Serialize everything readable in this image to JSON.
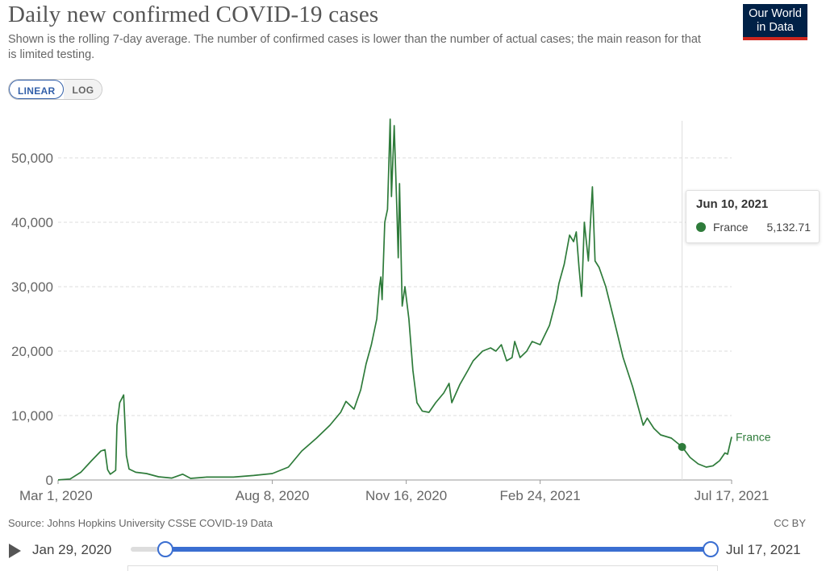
{
  "header": {
    "title": "Daily new confirmed COVID-19 cases",
    "subtitle": "Shown is the rolling 7-day average. The number of confirmed cases is lower than the number of actual cases; the main reason for that is limited testing.",
    "logo_line1": "Our World",
    "logo_line2": "in Data"
  },
  "scale_toggle": {
    "linear": "LINEAR",
    "log": "LOG",
    "selected": "LINEAR"
  },
  "tooltip": {
    "date": "Jun 10, 2021",
    "series": "France",
    "value": "5,132.71",
    "color": "#2e7b3a"
  },
  "footer": {
    "source": "Source: Johns Hopkins University CSSE COVID-19 Data",
    "license": "CC BY"
  },
  "timeline": {
    "start_label": "Jan 29, 2020",
    "end_label": "Jul 17, 2021"
  },
  "colors": {
    "series": "#2e7b3a",
    "accent": "#3a6ed1",
    "grid": "#dddddd",
    "logo_bg": "#002147",
    "logo_bar": "#ce261e"
  },
  "chart_data": {
    "type": "line",
    "title": "Daily new confirmed COVID-19 cases",
    "xlabel": "",
    "ylabel": "",
    "x_range": [
      "2020-03-01",
      "2021-07-17"
    ],
    "ylim": [
      0,
      56000
    ],
    "y_ticks": [
      0,
      10000,
      20000,
      30000,
      40000,
      50000
    ],
    "y_tick_labels": [
      "0",
      "10,000",
      "20,000",
      "30,000",
      "40,000",
      "50,000"
    ],
    "x_ticks": [
      "2020-03-01",
      "2020-08-08",
      "2020-11-16",
      "2021-02-24",
      "2021-07-17"
    ],
    "x_tick_labels": [
      "Mar 1, 2020",
      "Aug 8, 2020",
      "Nov 16, 2020",
      "Feb 24, 2021",
      "Jul 17, 2021"
    ],
    "grid": "horizontal dashed",
    "highlight": {
      "date": "2021-06-10",
      "value": 5132.71
    },
    "series": [
      {
        "name": "France",
        "points": [
          [
            "2020-03-01",
            10
          ],
          [
            "2020-03-10",
            150
          ],
          [
            "2020-03-18",
            1200
          ],
          [
            "2020-03-26",
            3000
          ],
          [
            "2020-04-02",
            4500
          ],
          [
            "2020-04-05",
            4700
          ],
          [
            "2020-04-07",
            1600
          ],
          [
            "2020-04-09",
            900
          ],
          [
            "2020-04-11",
            1200
          ],
          [
            "2020-04-13",
            1500
          ],
          [
            "2020-04-14",
            8500
          ],
          [
            "2020-04-16",
            12000
          ],
          [
            "2020-04-19",
            13200
          ],
          [
            "2020-04-21",
            3800
          ],
          [
            "2020-04-23",
            1700
          ],
          [
            "2020-04-28",
            1200
          ],
          [
            "2020-05-06",
            1000
          ],
          [
            "2020-05-15",
            500
          ],
          [
            "2020-05-25",
            300
          ],
          [
            "2020-06-02",
            900
          ],
          [
            "2020-06-08",
            250
          ],
          [
            "2020-06-20",
            450
          ],
          [
            "2020-07-10",
            450
          ],
          [
            "2020-07-25",
            700
          ],
          [
            "2020-08-08",
            1000
          ],
          [
            "2020-08-20",
            2000
          ],
          [
            "2020-08-30",
            4500
          ],
          [
            "2020-09-10",
            6500
          ],
          [
            "2020-09-20",
            8500
          ],
          [
            "2020-09-28",
            10500
          ],
          [
            "2020-10-02",
            12200
          ],
          [
            "2020-10-08",
            11000
          ],
          [
            "2020-10-13",
            14000
          ],
          [
            "2020-10-17",
            18000
          ],
          [
            "2020-10-21",
            21000
          ],
          [
            "2020-10-25",
            25000
          ],
          [
            "2020-10-27",
            30000
          ],
          [
            "2020-10-28",
            31500
          ],
          [
            "2020-10-29",
            28000
          ],
          [
            "2020-10-31",
            40000
          ],
          [
            "2020-11-02",
            42000
          ],
          [
            "2020-11-04",
            56000
          ],
          [
            "2020-11-05",
            44000
          ],
          [
            "2020-11-07",
            55000
          ],
          [
            "2020-11-09",
            42000
          ],
          [
            "2020-11-10",
            34500
          ],
          [
            "2020-11-11",
            46000
          ],
          [
            "2020-11-13",
            27000
          ],
          [
            "2020-11-15",
            30000
          ],
          [
            "2020-11-18",
            25000
          ],
          [
            "2020-11-21",
            17000
          ],
          [
            "2020-11-24",
            12000
          ],
          [
            "2020-11-28",
            10700
          ],
          [
            "2020-12-03",
            10500
          ],
          [
            "2020-12-08",
            12000
          ],
          [
            "2020-12-14",
            13500
          ],
          [
            "2020-12-18",
            15000
          ],
          [
            "2020-12-20",
            12000
          ],
          [
            "2020-12-26",
            14800
          ],
          [
            "2021-01-01",
            17000
          ],
          [
            "2021-01-05",
            18500
          ],
          [
            "2021-01-12",
            20000
          ],
          [
            "2021-01-18",
            20500
          ],
          [
            "2021-01-22",
            20000
          ],
          [
            "2021-01-26",
            21000
          ],
          [
            "2021-01-30",
            18500
          ],
          [
            "2021-02-03",
            19000
          ],
          [
            "2021-02-05",
            21500
          ],
          [
            "2021-02-09",
            19000
          ],
          [
            "2021-02-14",
            20000
          ],
          [
            "2021-02-18",
            21500
          ],
          [
            "2021-02-24",
            21000
          ],
          [
            "2021-03-03",
            24000
          ],
          [
            "2021-03-08",
            28000
          ],
          [
            "2021-03-10",
            30500
          ],
          [
            "2021-03-14",
            33500
          ],
          [
            "2021-03-18",
            38000
          ],
          [
            "2021-03-21",
            37000
          ],
          [
            "2021-03-23",
            38500
          ],
          [
            "2021-03-25",
            33000
          ],
          [
            "2021-03-27",
            28500
          ],
          [
            "2021-03-29",
            40000
          ],
          [
            "2021-04-01",
            34000
          ],
          [
            "2021-04-04",
            45500
          ],
          [
            "2021-04-06",
            34000
          ],
          [
            "2021-04-09",
            33000
          ],
          [
            "2021-04-14",
            30000
          ],
          [
            "2021-04-20",
            25000
          ],
          [
            "2021-04-27",
            19000
          ],
          [
            "2021-05-04",
            14500
          ],
          [
            "2021-05-08",
            11500
          ],
          [
            "2021-05-12",
            8500
          ],
          [
            "2021-05-15",
            9600
          ],
          [
            "2021-05-20",
            8000
          ],
          [
            "2021-05-25",
            7000
          ],
          [
            "2021-06-02",
            6500
          ],
          [
            "2021-06-10",
            5132.71
          ],
          [
            "2021-06-16",
            3500
          ],
          [
            "2021-06-22",
            2500
          ],
          [
            "2021-06-28",
            2000
          ],
          [
            "2021-07-03",
            2200
          ],
          [
            "2021-07-08",
            3000
          ],
          [
            "2021-07-12",
            4200
          ],
          [
            "2021-07-14",
            4000
          ],
          [
            "2021-07-17",
            6700
          ]
        ]
      }
    ]
  }
}
